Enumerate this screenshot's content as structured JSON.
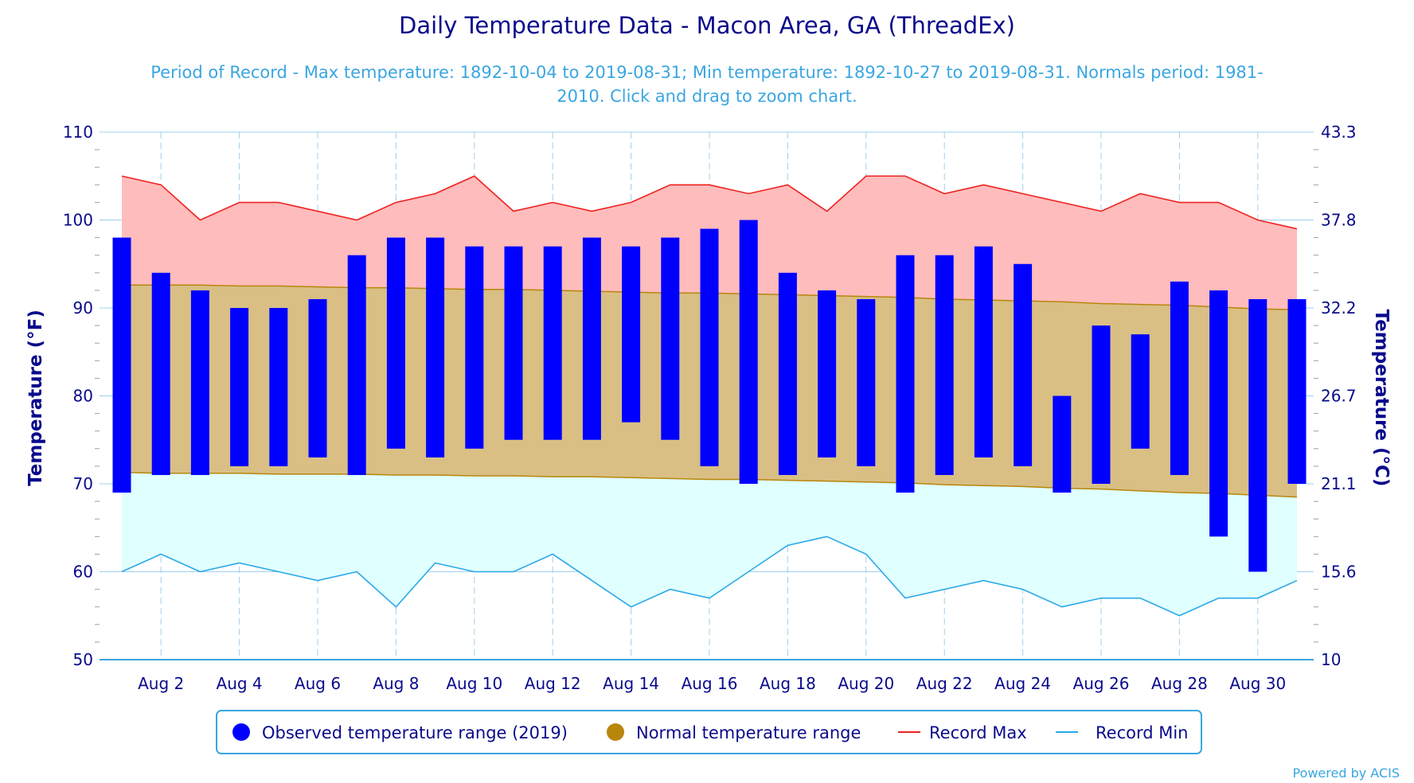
{
  "chart_data": {
    "type": "bar",
    "title": "Daily Temperature Data - Macon Area, GA (ThreadEx)",
    "subtitle_lines": [
      "Period of Record - Max temperature: 1892-10-04 to 2019-08-31; Min temperature: 1892-10-27 to 2019-08-31. Normals period: 1981-",
      "2010. Click and drag to zoom chart."
    ],
    "ylabel": "Temperature (°F)",
    "ylabel_right": "Temperature (°C)",
    "ylim": [
      50,
      110
    ],
    "y_ticks": [
      "50",
      "60",
      "70",
      "80",
      "90",
      "100",
      "110"
    ],
    "y_ticks_right": [
      "10",
      "15.6",
      "21.1",
      "26.7",
      "32.2",
      "37.8",
      "43.3"
    ],
    "x_ticks": [
      "Aug 2",
      "Aug 4",
      "Aug 6",
      "Aug 8",
      "Aug 10",
      "Aug 12",
      "Aug 14",
      "Aug 16",
      "Aug 18",
      "Aug 20",
      "Aug 22",
      "Aug 24",
      "Aug 26",
      "Aug 28",
      "Aug 30"
    ],
    "x_tick_days": [
      2,
      4,
      6,
      8,
      10,
      12,
      14,
      16,
      18,
      20,
      22,
      24,
      26,
      28,
      30
    ],
    "days": [
      1,
      2,
      3,
      4,
      5,
      6,
      7,
      8,
      9,
      10,
      11,
      12,
      13,
      14,
      15,
      16,
      17,
      18,
      19,
      20,
      21,
      22,
      23,
      24,
      25,
      26,
      27,
      28,
      29,
      30,
      31
    ],
    "series": [
      {
        "name": "Observed temperature range (2019)",
        "high": [
          98,
          94,
          92,
          90,
          90,
          91,
          96,
          98,
          98,
          97,
          97,
          97,
          98,
          97,
          98,
          99,
          100,
          94,
          92,
          91,
          96,
          96,
          97,
          95,
          80,
          88,
          87,
          93,
          92,
          91,
          91
        ],
        "low": [
          69,
          71,
          71,
          72,
          72,
          73,
          71,
          74,
          73,
          74,
          75,
          75,
          75,
          77,
          75,
          72,
          70,
          71,
          73,
          72,
          69,
          71,
          73,
          72,
          69,
          70,
          74,
          71,
          64,
          60,
          70
        ],
        "color": "#0000ff"
      },
      {
        "name": "Normal temperature range",
        "high": [
          92.6,
          92.6,
          92.6,
          92.5,
          92.5,
          92.4,
          92.3,
          92.3,
          92.2,
          92.1,
          92.1,
          92.0,
          91.9,
          91.8,
          91.7,
          91.7,
          91.6,
          91.5,
          91.4,
          91.3,
          91.2,
          91.0,
          90.9,
          90.8,
          90.7,
          90.5,
          90.4,
          90.3,
          90.1,
          89.9,
          89.8
        ],
        "low": [
          71.3,
          71.2,
          71.2,
          71.2,
          71.1,
          71.1,
          71.1,
          71.0,
          71.0,
          70.9,
          70.9,
          70.8,
          70.8,
          70.7,
          70.6,
          70.5,
          70.5,
          70.4,
          70.3,
          70.2,
          70.1,
          69.9,
          69.8,
          69.7,
          69.5,
          69.4,
          69.2,
          69.0,
          68.9,
          68.7,
          68.5
        ],
        "color": "#b8860b"
      },
      {
        "name": "Record Max",
        "values": [
          105,
          104,
          100,
          102,
          102,
          101,
          100,
          102,
          103,
          105,
          101,
          102,
          101,
          102,
          104,
          104,
          103,
          104,
          101,
          105,
          105,
          103,
          104,
          103,
          102,
          101,
          103,
          102,
          102,
          100,
          99
        ],
        "color": "#ee2222"
      },
      {
        "name": "Record Min",
        "values": [
          60,
          62,
          60,
          61,
          60,
          59,
          60,
          56,
          61,
          60,
          60,
          62,
          59,
          56,
          58,
          57,
          60,
          63,
          64,
          62,
          57,
          58,
          59,
          58,
          56,
          57,
          57,
          55,
          57,
          57,
          59
        ],
        "color": "#2aa8e8"
      }
    ],
    "legend_position": "bottom",
    "grid": true,
    "credit": "Powered by ACIS"
  }
}
